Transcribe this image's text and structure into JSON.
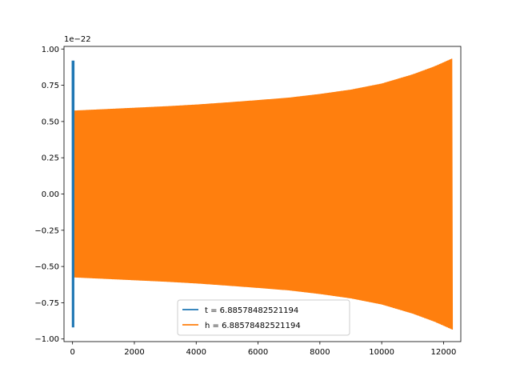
{
  "chart_data": {
    "type": "line",
    "title": "",
    "xlabel": "",
    "ylabel": "",
    "y_offset_label": "1e−22",
    "xlim": [
      -276,
      12558
    ],
    "ylim": [
      -1.018,
      1.018
    ],
    "x_ticks": [
      0,
      2000,
      4000,
      6000,
      8000,
      10000,
      12000
    ],
    "x_tick_labels": [
      "0",
      "2000",
      "4000",
      "6000",
      "8000",
      "10000",
      "12000"
    ],
    "y_ticks": [
      1.0,
      0.75,
      0.5,
      0.25,
      0.0,
      -0.25,
      -0.5,
      -0.75,
      -1.0
    ],
    "y_tick_labels": [
      "1.00",
      "0.75",
      "0.50",
      "0.25",
      "0.00",
      "−0.25",
      "−0.50",
      "−0.75",
      "−1.00"
    ],
    "grid": false,
    "legend_position": "bottom-center",
    "series": [
      {
        "name": "t = 6.88578482521194",
        "color": "#1f77b4",
        "style": "oscillation",
        "x_start": 0,
        "x_end": 35,
        "envelope": [
          [
            0,
            0.92
          ],
          [
            35,
            0.92
          ]
        ]
      },
      {
        "name": "h = 6.88578482521194",
        "color": "#ff7f0e",
        "style": "oscillation",
        "x_start": 0,
        "x_end": 12282,
        "envelope": [
          [
            0,
            0.575
          ],
          [
            1000,
            0.585
          ],
          [
            2000,
            0.595
          ],
          [
            3000,
            0.605
          ],
          [
            4000,
            0.617
          ],
          [
            5000,
            0.632
          ],
          [
            6000,
            0.648
          ],
          [
            7000,
            0.665
          ],
          [
            8000,
            0.69
          ],
          [
            9000,
            0.72
          ],
          [
            10000,
            0.762
          ],
          [
            11000,
            0.825
          ],
          [
            11700,
            0.88
          ],
          [
            12282,
            0.935
          ]
        ]
      }
    ]
  }
}
